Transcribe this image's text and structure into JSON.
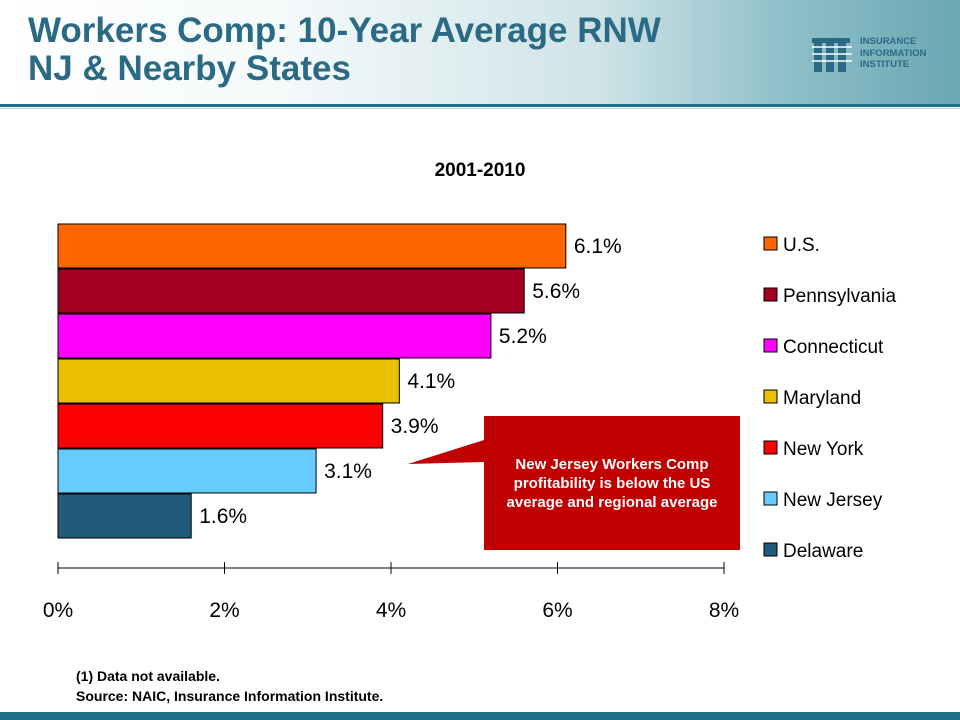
{
  "slide": {
    "title_line1": "Workers Comp: 10-Year Average RNW",
    "title_line2": "NJ & Nearby States",
    "footnote_line1": "(1) Data not available.",
    "footnote_line2": "Source: NAIC, Insurance Information Institute."
  },
  "logo": {
    "line1": "INSURANCE",
    "line2": "INFORMATION",
    "line3": "INSTITUTE"
  },
  "callout": {
    "text": "New Jersey Workers Comp profitability is below the US average and regional average",
    "color": "#c00000"
  },
  "chart_data": {
    "type": "bar",
    "orientation": "horizontal",
    "title": "2001-2010",
    "xlabel": "",
    "ylabel": "",
    "xlim": [
      0,
      8
    ],
    "x_ticks": [
      0,
      2,
      4,
      6,
      8
    ],
    "x_tick_labels": [
      "0%",
      "2%",
      "4%",
      "6%",
      "8%"
    ],
    "grid": false,
    "legend_position": "right",
    "categories": [
      "U.S.",
      "Pennsylvania",
      "Connecticut",
      "Maryland",
      "New York",
      "New Jersey",
      "Delaware"
    ],
    "values": [
      6.1,
      5.6,
      5.2,
      4.1,
      3.9,
      3.1,
      1.6
    ],
    "data_labels": [
      "6.1%",
      "5.6%",
      "5.2%",
      "4.1%",
      "3.9%",
      "3.1%",
      "1.6%"
    ],
    "colors": [
      "#ff6600",
      "#a50021",
      "#ff00ff",
      "#e8c000",
      "#ff0000",
      "#66ccff",
      "#215a7a"
    ]
  }
}
